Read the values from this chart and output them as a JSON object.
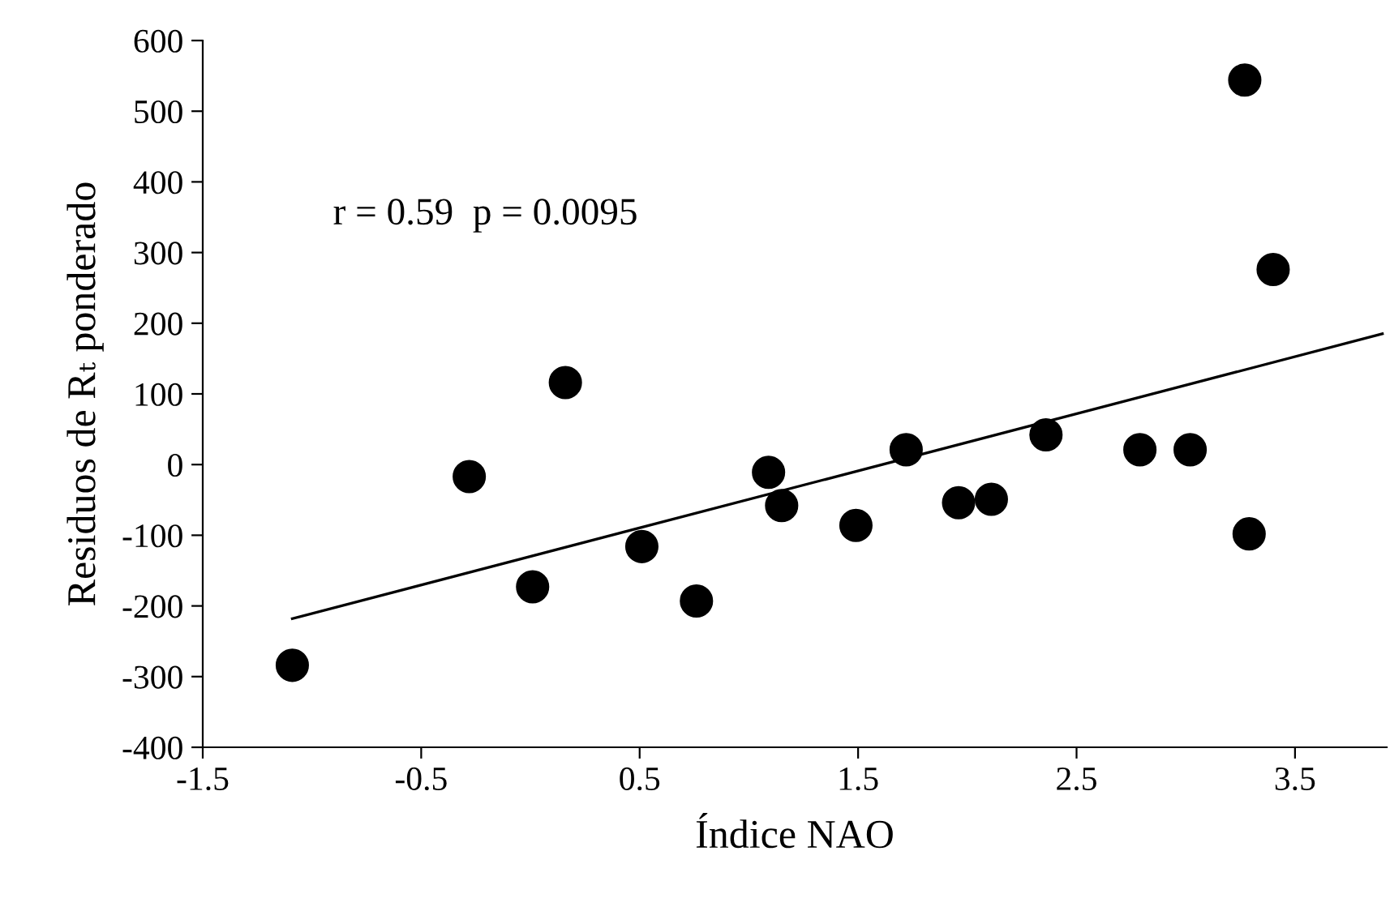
{
  "chart_data": {
    "type": "scatter",
    "xlabel": "Índice NAO",
    "ylabel": "Residuos de Rₜ ponderado",
    "annotations": [
      "r = 0.59  p = 0.0095"
    ],
    "series": [
      {
        "color": "#000000",
        "marker": "circle",
        "x": [
          -1.09,
          -0.28,
          0.01,
          0.16,
          0.51,
          0.76,
          1.09,
          1.15,
          1.49,
          1.72,
          1.96,
          2.11,
          2.36,
          2.79,
          3.02,
          3.27,
          3.29,
          3.4
        ],
        "values": [
          -284,
          -17,
          -173,
          116,
          -116,
          -193,
          -11,
          -58,
          -86,
          21,
          -54,
          -49,
          42,
          21,
          21,
          544,
          -98,
          276
        ]
      },
      {
        "type": "line",
        "color": "#000000",
        "x": [
          -1.09,
          3.9
        ],
        "values": [
          -218,
          185
        ]
      }
    ],
    "xlim": [
      -1.5,
      3.92
    ],
    "xticks": [
      -1.5,
      -0.5,
      0.5,
      1.5,
      2.5,
      3.5
    ],
    "ylim": [
      -400,
      600
    ],
    "yticks": [
      -400,
      -300,
      -200,
      -100,
      0,
      100,
      200,
      300,
      400,
      500,
      600
    ],
    "grid": false,
    "legend": false
  }
}
